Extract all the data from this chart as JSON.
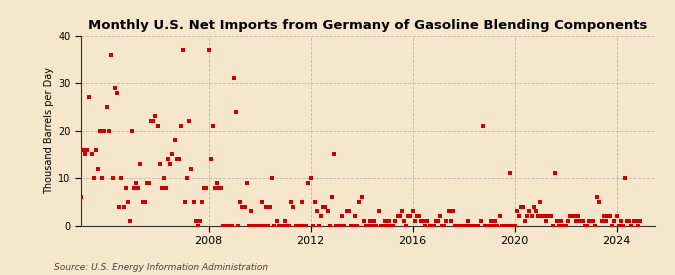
{
  "title": "Monthly U.S. Net Imports from Germany of Gasoline Blending Components",
  "ylabel": "Thousand Barrels per Day",
  "source": "Source: U.S. Energy Information Administration",
  "background_color": "#f5e6cc",
  "marker_color": "#cc0000",
  "marker_size": 7,
  "ylim": [
    0,
    40
  ],
  "yticks": [
    0,
    10,
    20,
    30,
    40
  ],
  "xlim_start": 2003.0,
  "xlim_end": 2025.5,
  "xticks": [
    2008,
    2012,
    2016,
    2020,
    2024
  ],
  "data": [
    [
      2003.0,
      6
    ],
    [
      2003.08,
      16
    ],
    [
      2003.17,
      15
    ],
    [
      2003.25,
      16
    ],
    [
      2003.33,
      27
    ],
    [
      2003.42,
      15
    ],
    [
      2003.5,
      10
    ],
    [
      2003.58,
      16
    ],
    [
      2003.67,
      12
    ],
    [
      2003.75,
      20
    ],
    [
      2003.83,
      10
    ],
    [
      2003.92,
      20
    ],
    [
      2004.0,
      25
    ],
    [
      2004.08,
      20
    ],
    [
      2004.17,
      36
    ],
    [
      2004.25,
      10
    ],
    [
      2004.33,
      29
    ],
    [
      2004.42,
      28
    ],
    [
      2004.5,
      4
    ],
    [
      2004.58,
      10
    ],
    [
      2004.67,
      4
    ],
    [
      2004.75,
      8
    ],
    [
      2004.83,
      5
    ],
    [
      2004.92,
      1
    ],
    [
      2005.0,
      20
    ],
    [
      2005.08,
      8
    ],
    [
      2005.17,
      9
    ],
    [
      2005.25,
      8
    ],
    [
      2005.33,
      13
    ],
    [
      2005.42,
      5
    ],
    [
      2005.5,
      5
    ],
    [
      2005.58,
      9
    ],
    [
      2005.67,
      9
    ],
    [
      2005.75,
      22
    ],
    [
      2005.83,
      22
    ],
    [
      2005.92,
      23
    ],
    [
      2006.0,
      21
    ],
    [
      2006.08,
      13
    ],
    [
      2006.17,
      8
    ],
    [
      2006.25,
      10
    ],
    [
      2006.33,
      8
    ],
    [
      2006.42,
      14
    ],
    [
      2006.5,
      13
    ],
    [
      2006.58,
      15
    ],
    [
      2006.67,
      18
    ],
    [
      2006.75,
      14
    ],
    [
      2006.83,
      14
    ],
    [
      2006.92,
      21
    ],
    [
      2007.0,
      37
    ],
    [
      2007.08,
      5
    ],
    [
      2007.17,
      10
    ],
    [
      2007.25,
      22
    ],
    [
      2007.33,
      12
    ],
    [
      2007.42,
      5
    ],
    [
      2007.5,
      1
    ],
    [
      2007.58,
      0
    ],
    [
      2007.67,
      1
    ],
    [
      2007.75,
      5
    ],
    [
      2007.83,
      8
    ],
    [
      2007.92,
      8
    ],
    [
      2008.0,
      37
    ],
    [
      2008.08,
      14
    ],
    [
      2008.17,
      21
    ],
    [
      2008.25,
      8
    ],
    [
      2008.33,
      9
    ],
    [
      2008.42,
      8
    ],
    [
      2008.5,
      8
    ],
    [
      2008.58,
      0
    ],
    [
      2008.67,
      0
    ],
    [
      2008.75,
      0
    ],
    [
      2008.83,
      0
    ],
    [
      2008.92,
      0
    ],
    [
      2009.0,
      31
    ],
    [
      2009.08,
      24
    ],
    [
      2009.17,
      0
    ],
    [
      2009.25,
      5
    ],
    [
      2009.33,
      4
    ],
    [
      2009.42,
      4
    ],
    [
      2009.5,
      9
    ],
    [
      2009.58,
      0
    ],
    [
      2009.67,
      3
    ],
    [
      2009.75,
      0
    ],
    [
      2009.83,
      0
    ],
    [
      2009.92,
      0
    ],
    [
      2010.0,
      0
    ],
    [
      2010.08,
      5
    ],
    [
      2010.17,
      0
    ],
    [
      2010.25,
      4
    ],
    [
      2010.33,
      0
    ],
    [
      2010.42,
      4
    ],
    [
      2010.5,
      10
    ],
    [
      2010.58,
      0
    ],
    [
      2010.67,
      1
    ],
    [
      2010.75,
      0
    ],
    [
      2010.83,
      0
    ],
    [
      2010.92,
      0
    ],
    [
      2011.0,
      1
    ],
    [
      2011.08,
      0
    ],
    [
      2011.17,
      0
    ],
    [
      2011.25,
      5
    ],
    [
      2011.33,
      4
    ],
    [
      2011.42,
      0
    ],
    [
      2011.5,
      0
    ],
    [
      2011.58,
      0
    ],
    [
      2011.67,
      5
    ],
    [
      2011.75,
      0
    ],
    [
      2011.83,
      0
    ],
    [
      2011.92,
      9
    ],
    [
      2012.0,
      10
    ],
    [
      2012.08,
      0
    ],
    [
      2012.17,
      5
    ],
    [
      2012.25,
      3
    ],
    [
      2012.33,
      0
    ],
    [
      2012.42,
      2
    ],
    [
      2012.5,
      4
    ],
    [
      2012.58,
      4
    ],
    [
      2012.67,
      3
    ],
    [
      2012.75,
      0
    ],
    [
      2012.83,
      6
    ],
    [
      2012.92,
      15
    ],
    [
      2013.0,
      0
    ],
    [
      2013.08,
      0
    ],
    [
      2013.17,
      0
    ],
    [
      2013.25,
      2
    ],
    [
      2013.33,
      0
    ],
    [
      2013.42,
      3
    ],
    [
      2013.5,
      3
    ],
    [
      2013.58,
      0
    ],
    [
      2013.67,
      0
    ],
    [
      2013.75,
      2
    ],
    [
      2013.83,
      0
    ],
    [
      2013.92,
      5
    ],
    [
      2014.0,
      6
    ],
    [
      2014.08,
      1
    ],
    [
      2014.17,
      0
    ],
    [
      2014.25,
      0
    ],
    [
      2014.33,
      1
    ],
    [
      2014.42,
      0
    ],
    [
      2014.5,
      1
    ],
    [
      2014.58,
      0
    ],
    [
      2014.67,
      3
    ],
    [
      2014.75,
      0
    ],
    [
      2014.83,
      0
    ],
    [
      2014.92,
      1
    ],
    [
      2015.0,
      0
    ],
    [
      2015.08,
      1
    ],
    [
      2015.17,
      0
    ],
    [
      2015.25,
      0
    ],
    [
      2015.33,
      1
    ],
    [
      2015.42,
      2
    ],
    [
      2015.5,
      2
    ],
    [
      2015.58,
      3
    ],
    [
      2015.67,
      1
    ],
    [
      2015.75,
      0
    ],
    [
      2015.83,
      2
    ],
    [
      2015.92,
      2
    ],
    [
      2016.0,
      3
    ],
    [
      2016.08,
      1
    ],
    [
      2016.17,
      2
    ],
    [
      2016.25,
      2
    ],
    [
      2016.33,
      1
    ],
    [
      2016.42,
      1
    ],
    [
      2016.5,
      0
    ],
    [
      2016.58,
      1
    ],
    [
      2016.67,
      0
    ],
    [
      2016.75,
      0
    ],
    [
      2016.83,
      0
    ],
    [
      2016.92,
      1
    ],
    [
      2017.0,
      1
    ],
    [
      2017.08,
      2
    ],
    [
      2017.17,
      0
    ],
    [
      2017.25,
      0
    ],
    [
      2017.33,
      1
    ],
    [
      2017.42,
      3
    ],
    [
      2017.5,
      1
    ],
    [
      2017.58,
      3
    ],
    [
      2017.67,
      0
    ],
    [
      2017.75,
      0
    ],
    [
      2017.83,
      0
    ],
    [
      2017.92,
      0
    ],
    [
      2018.0,
      0
    ],
    [
      2018.08,
      0
    ],
    [
      2018.17,
      1
    ],
    [
      2018.25,
      0
    ],
    [
      2018.33,
      0
    ],
    [
      2018.42,
      0
    ],
    [
      2018.5,
      0
    ],
    [
      2018.58,
      0
    ],
    [
      2018.67,
      1
    ],
    [
      2018.75,
      21
    ],
    [
      2018.83,
      0
    ],
    [
      2018.92,
      0
    ],
    [
      2019.0,
      0
    ],
    [
      2019.08,
      1
    ],
    [
      2019.17,
      0
    ],
    [
      2019.25,
      1
    ],
    [
      2019.33,
      0
    ],
    [
      2019.42,
      2
    ],
    [
      2019.5,
      0
    ],
    [
      2019.58,
      0
    ],
    [
      2019.67,
      0
    ],
    [
      2019.75,
      0
    ],
    [
      2019.83,
      11
    ],
    [
      2019.92,
      0
    ],
    [
      2020.0,
      0
    ],
    [
      2020.08,
      3
    ],
    [
      2020.17,
      2
    ],
    [
      2020.25,
      4
    ],
    [
      2020.33,
      4
    ],
    [
      2020.42,
      1
    ],
    [
      2020.5,
      2
    ],
    [
      2020.58,
      3
    ],
    [
      2020.67,
      2
    ],
    [
      2020.75,
      4
    ],
    [
      2020.83,
      3
    ],
    [
      2020.92,
      2
    ],
    [
      2021.0,
      5
    ],
    [
      2021.08,
      2
    ],
    [
      2021.17,
      2
    ],
    [
      2021.25,
      1
    ],
    [
      2021.33,
      2
    ],
    [
      2021.42,
      2
    ],
    [
      2021.5,
      0
    ],
    [
      2021.58,
      11
    ],
    [
      2021.67,
      1
    ],
    [
      2021.75,
      0
    ],
    [
      2021.83,
      1
    ],
    [
      2021.92,
      0
    ],
    [
      2022.0,
      0
    ],
    [
      2022.08,
      1
    ],
    [
      2022.17,
      2
    ],
    [
      2022.25,
      2
    ],
    [
      2022.33,
      2
    ],
    [
      2022.42,
      1
    ],
    [
      2022.5,
      2
    ],
    [
      2022.58,
      1
    ],
    [
      2022.67,
      1
    ],
    [
      2022.75,
      0
    ],
    [
      2022.83,
      0
    ],
    [
      2022.92,
      1
    ],
    [
      2023.0,
      1
    ],
    [
      2023.08,
      1
    ],
    [
      2023.17,
      0
    ],
    [
      2023.25,
      6
    ],
    [
      2023.33,
      5
    ],
    [
      2023.42,
      1
    ],
    [
      2023.5,
      2
    ],
    [
      2023.58,
      1
    ],
    [
      2023.67,
      2
    ],
    [
      2023.75,
      2
    ],
    [
      2023.83,
      0
    ],
    [
      2023.92,
      1
    ],
    [
      2024.0,
      2
    ],
    [
      2024.08,
      0
    ],
    [
      2024.17,
      1
    ],
    [
      2024.25,
      0
    ],
    [
      2024.33,
      10
    ],
    [
      2024.42,
      1
    ],
    [
      2024.5,
      1
    ],
    [
      2024.58,
      0
    ],
    [
      2024.67,
      1
    ],
    [
      2024.75,
      1
    ],
    [
      2024.83,
      0
    ],
    [
      2024.92,
      1
    ]
  ]
}
